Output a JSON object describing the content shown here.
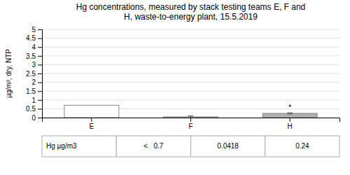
{
  "chart_data": {
    "type": "bar",
    "title": "Hg concentrations, measured by stack testing teams E, F and\nH, waste-to-energy plant, 15.5.2019",
    "ylabel": "µg/m³, dry, NTP",
    "categories": [
      "E",
      "F",
      "H"
    ],
    "values": [
      0.7,
      0.0418,
      0.24
    ],
    "colors": [
      "white",
      "white",
      "#b0b0b0"
    ],
    "errors": [
      null,
      0.055,
      0.035
    ],
    "annotations": [
      {
        "text": "*",
        "category": "H",
        "y": 0.57
      }
    ],
    "ylim": [
      0,
      5
    ],
    "yticks": [
      0,
      0.5,
      1,
      1.5,
      2,
      2.5,
      3,
      3.5,
      4,
      4.5,
      5
    ],
    "grid": true,
    "table": {
      "row_label": "Hg µg/m3",
      "values": [
        "<   0.7",
        "0.0418",
        "0.24"
      ]
    }
  }
}
